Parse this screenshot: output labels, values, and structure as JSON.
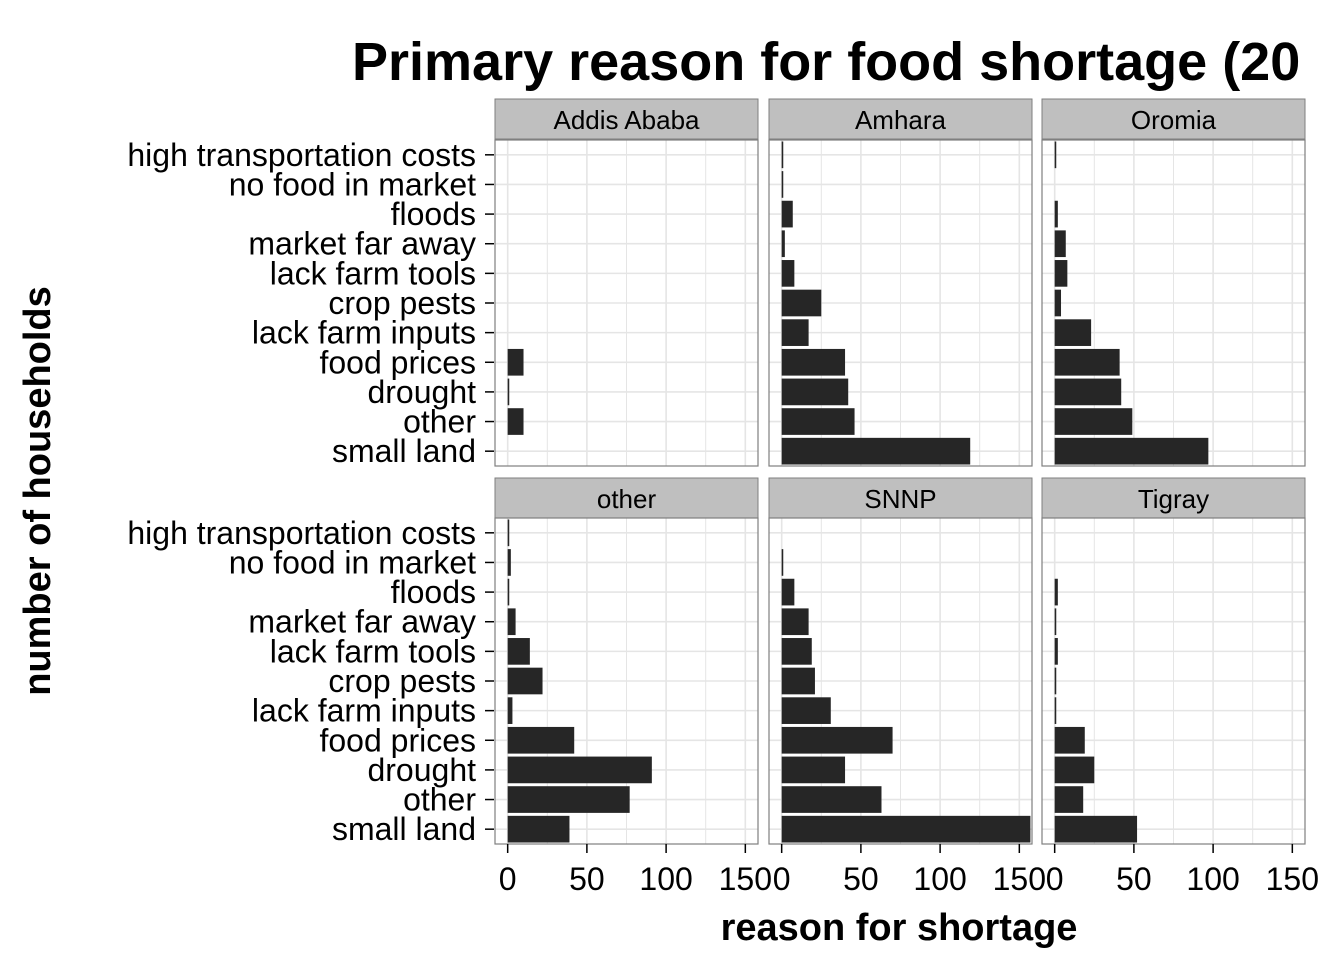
{
  "chart_data": {
    "type": "bar",
    "orientation": "horizontal",
    "title": "Primary reason for food shortage (20",
    "xlabel": "reason for shortage",
    "ylabel": "number of households",
    "xlim": [
      -8,
      158
    ],
    "x_ticks": [
      0,
      50,
      100,
      150
    ],
    "x_tick_labels": [
      "0",
      "50",
      "100",
      "150"
    ],
    "grid": true,
    "layout": "facet grid, 2 rows x 3 columns",
    "categories": [
      "small land",
      "other",
      "drought",
      "food prices",
      "lack farm inputs",
      "crop pests",
      "lack farm tools",
      "market far away",
      "floods",
      "no food in market",
      "high transportation costs"
    ],
    "panels": [
      {
        "name": "Addis Ababa",
        "values": [
          0,
          10,
          1,
          10,
          0,
          0,
          0,
          0,
          0,
          0,
          0
        ]
      },
      {
        "name": "Amhara",
        "values": [
          119,
          46,
          42,
          40,
          17,
          25,
          8,
          2,
          7,
          1,
          1
        ]
      },
      {
        "name": "Oromia",
        "values": [
          97,
          49,
          42,
          41,
          23,
          4,
          8,
          7,
          2,
          0,
          1
        ]
      },
      {
        "name": "other",
        "values": [
          39,
          77,
          91,
          42,
          3,
          22,
          14,
          5,
          1,
          2,
          1
        ]
      },
      {
        "name": "SNNP",
        "values": [
          157,
          63,
          40,
          70,
          31,
          21,
          19,
          17,
          8,
          1,
          0
        ]
      },
      {
        "name": "Tigray",
        "values": [
          52,
          18,
          25,
          19,
          1,
          1,
          2,
          1,
          2,
          0,
          0
        ]
      }
    ],
    "colors": {
      "bar": "#262626",
      "panel_background": "#ffffff",
      "panel_border": "#7f7f7f",
      "grid": "#e5e5e5",
      "strip_background": "#bfbfbf"
    }
  }
}
